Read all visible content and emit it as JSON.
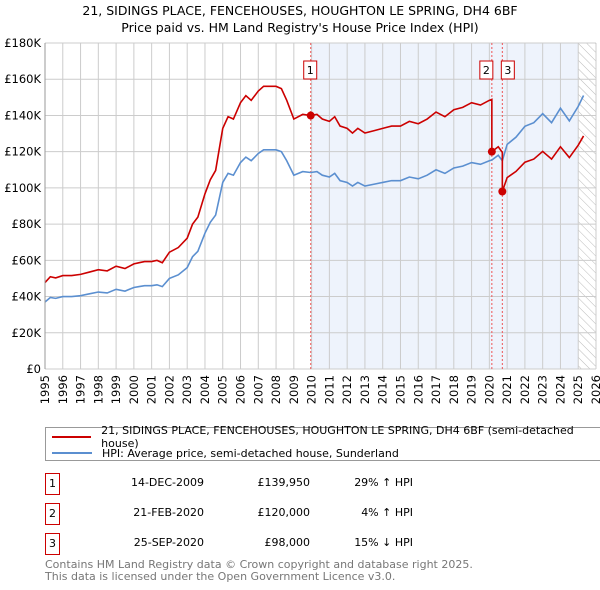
{
  "header": {
    "title": "21, SIDINGS PLACE, FENCEHOUSES, HOUGHTON LE SPRING, DH4 6BF",
    "subtitle": "Price paid vs. HM Land Registry's House Price Index (HPI)"
  },
  "chart_data": {
    "type": "line",
    "xlim": [
      1995,
      2026
    ],
    "ylim": [
      0,
      180000
    ],
    "yticks": [
      0,
      20000,
      40000,
      60000,
      80000,
      100000,
      120000,
      140000,
      160000,
      180000
    ],
    "ytick_labels": [
      "£0",
      "£20K",
      "£40K",
      "£60K",
      "£80K",
      "£100K",
      "£120K",
      "£140K",
      "£160K",
      "£180K"
    ],
    "xticks": [
      "1995",
      "1996",
      "1997",
      "1998",
      "1999",
      "2000",
      "2001",
      "2002",
      "2003",
      "2004",
      "2005",
      "2006",
      "2007",
      "2008",
      "2009",
      "2010",
      "2011",
      "2012",
      "2013",
      "2014",
      "2015",
      "2016",
      "2017",
      "2018",
      "2019",
      "2020",
      "2021",
      "2022",
      "2023",
      "2024",
      "2025",
      "2026"
    ],
    "grid": true,
    "colors": {
      "property": "#cc0000",
      "hpi": "#5b8fd0",
      "shade": "#eef3fc"
    },
    "hpi": {
      "name": "HPI: Average price, semi-detached house, Sunderland",
      "x": [
        1995,
        1995.3,
        1995.6,
        1996,
        1996.5,
        1997,
        1997.5,
        1998,
        1998.5,
        1999,
        1999.5,
        2000,
        2000.3,
        2000.6,
        2001,
        2001.3,
        2001.6,
        2002,
        2002.5,
        2003,
        2003.3,
        2003.6,
        2004,
        2004.3,
        2004.6,
        2005,
        2005.3,
        2005.6,
        2006,
        2006.3,
        2006.6,
        2007,
        2007.3,
        2007.6,
        2008,
        2008.3,
        2008.6,
        2009,
        2009.5,
        2009.95,
        2010.3,
        2010.6,
        2011,
        2011.3,
        2011.6,
        2012,
        2012.3,
        2012.6,
        2013,
        2013.5,
        2014,
        2014.5,
        2015,
        2015.5,
        2016,
        2016.5,
        2017,
        2017.5,
        2018,
        2018.5,
        2019,
        2019.5,
        2020,
        2020.14,
        2020.5,
        2020.73,
        2021,
        2021.5,
        2022,
        2022.5,
        2023,
        2023.5,
        2024,
        2024.5,
        2025,
        2025.3
      ],
      "y": [
        37000,
        39500,
        39000,
        40000,
        40000,
        40500,
        41500,
        42500,
        42000,
        44000,
        43000,
        45000,
        45500,
        46000,
        46000,
        46500,
        45500,
        50000,
        52000,
        56000,
        62000,
        65000,
        75000,
        81000,
        85000,
        103000,
        108000,
        107000,
        114000,
        117000,
        115000,
        119000,
        121000,
        121000,
        121000,
        120000,
        115000,
        107000,
        109000,
        108500,
        109000,
        107000,
        106000,
        108000,
        104000,
        103000,
        101000,
        103000,
        101000,
        102000,
        103000,
        104000,
        104000,
        106000,
        105000,
        107000,
        110000,
        108000,
        111000,
        112000,
        114000,
        113000,
        115000,
        115400,
        118000,
        115000,
        124000,
        128000,
        134000,
        136000,
        141000,
        136000,
        144000,
        137000,
        145000,
        151000
      ]
    },
    "property": {
      "name": "21, SIDINGS PLACE, FENCEHOUSES, HOUGHTON LE SPRING, DH4 6BF (semi-detached house)"
    },
    "sales": [
      {
        "id": "1",
        "x": 2009.95,
        "date": "14-DEC-2009",
        "price": 139950,
        "price_label": "£139,950",
        "hpi_label": "29% ↑ HPI"
      },
      {
        "id": "2",
        "x": 2020.14,
        "date": "21-FEB-2020",
        "price": 120000,
        "price_label": "£120,000",
        "hpi_label": "4% ↑ HPI"
      },
      {
        "id": "3",
        "x": 2020.73,
        "date": "25-SEP-2020",
        "price": 98000,
        "price_label": "£98,000",
        "hpi_label": "15% ↓ HPI"
      }
    ]
  },
  "footer": {
    "line1": "Contains HM Land Registry data © Crown copyright and database right 2025.",
    "line2": "This data is licensed under the Open Government Licence v3.0."
  }
}
